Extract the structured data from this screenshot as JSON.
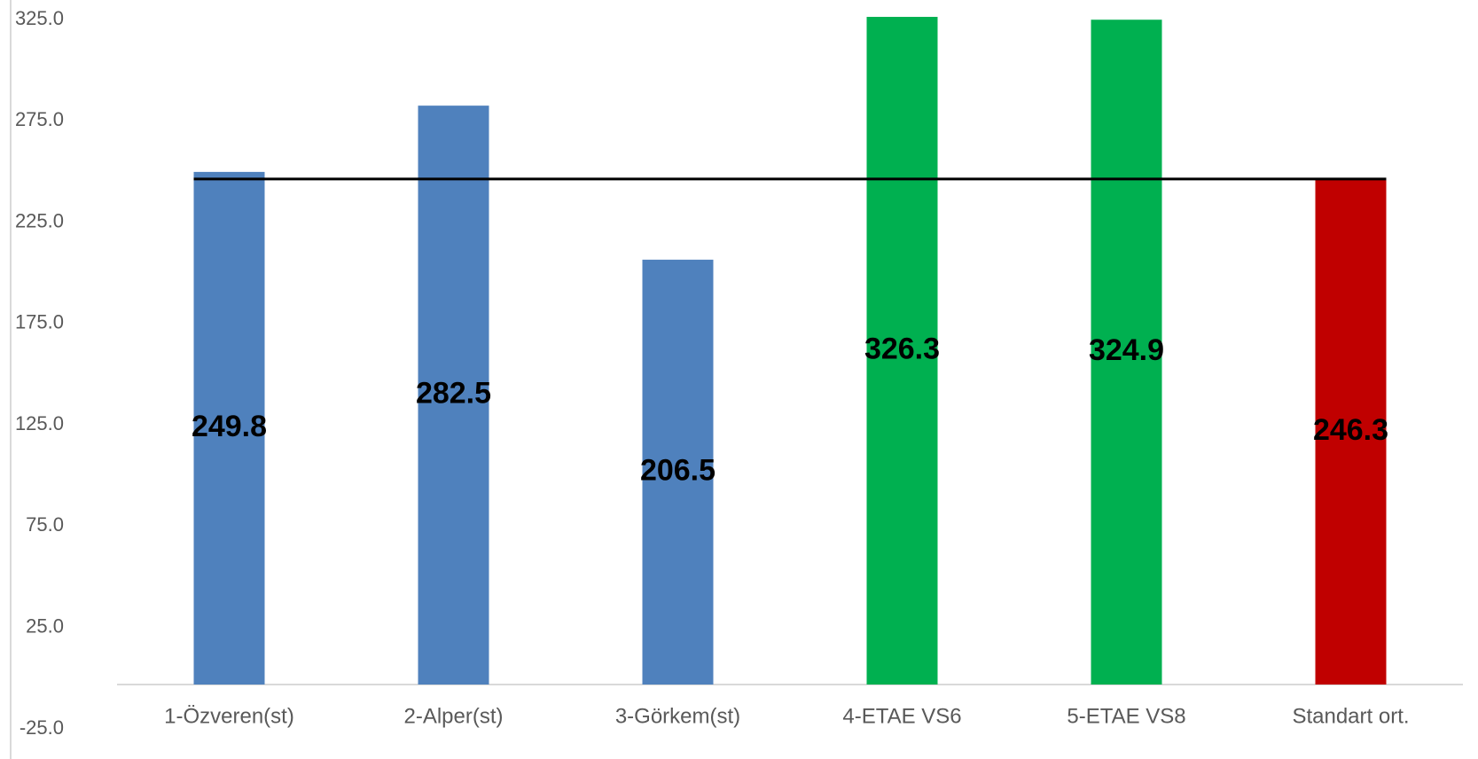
{
  "chart_data": {
    "type": "bar",
    "title": "",
    "xlabel": "",
    "ylabel": "",
    "categories": [
      "1-Özveren(st)",
      "2-Alper(st)",
      "3-Görkem(st)",
      "4-ETAE VS6",
      "5-ETAE VS8",
      "Standart ort."
    ],
    "values": [
      249.8,
      282.5,
      206.5,
      326.3,
      324.9,
      246.3
    ],
    "data_labels": [
      "249.8",
      "282.5",
      "206.5",
      "326.3",
      "324.9",
      "246.3"
    ],
    "bar_colors": [
      "#4f81bd",
      "#4f81bd",
      "#4f81bd",
      "#00b050",
      "#00b050",
      "#c00000"
    ],
    "ylim": [
      -25.0,
      325.0
    ],
    "yticks": [
      "325.0",
      "275.0",
      "225.0",
      "175.0",
      "125.0",
      "75.0",
      "25.0",
      "-25.0"
    ],
    "ytick_values": [
      325,
      275,
      225,
      175,
      125,
      75,
      25,
      -25
    ],
    "reference_line": {
      "value": 246.3,
      "color": "#000000"
    },
    "grid": false,
    "legend": "none"
  }
}
